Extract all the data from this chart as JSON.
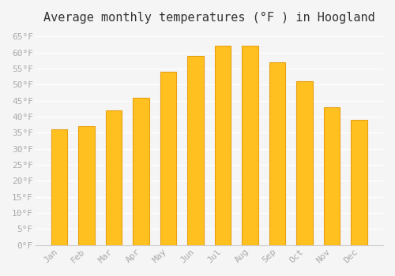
{
  "title": "Average monthly temperatures (°F ) in Hoogland",
  "months": [
    "Jan",
    "Feb",
    "Mar",
    "Apr",
    "May",
    "Jun",
    "Jul",
    "Aug",
    "Sep",
    "Oct",
    "Nov",
    "Dec"
  ],
  "values": [
    36,
    37,
    42,
    46,
    54,
    59,
    62,
    62,
    57,
    51,
    43,
    39
  ],
  "bar_color": "#FFC020",
  "bar_edge_color": "#E8A010",
  "ylim": [
    0,
    67
  ],
  "yticks": [
    0,
    5,
    10,
    15,
    20,
    25,
    30,
    35,
    40,
    45,
    50,
    55,
    60,
    65
  ],
  "ytick_labels": [
    "0°F",
    "5°F",
    "10°F",
    "15°F",
    "20°F",
    "25°F",
    "30°F",
    "35°F",
    "40°F",
    "45°F",
    "50°F",
    "55°F",
    "60°F",
    "65°F"
  ],
  "background_color": "#f5f5f5",
  "grid_color": "#ffffff",
  "title_fontsize": 11,
  "tick_fontsize": 8,
  "font_family": "monospace"
}
